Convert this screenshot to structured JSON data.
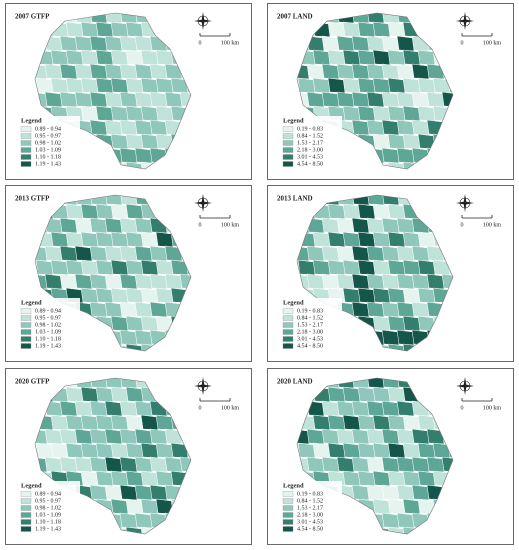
{
  "legend_colors": [
    "#e6f4f0",
    "#bfe2d9",
    "#8fc8bb",
    "#5ea797",
    "#347e6e",
    "#14564a"
  ],
  "panels": [
    {
      "title": "2007 GTFP",
      "legend": {
        "title": "Legend",
        "items": [
          "0.89 - 0.94",
          "0.95 - 0.97",
          "0.98 - 1.02",
          "1.03 - 1.09",
          "1.10 - 1.18",
          "1.19 - 1.43"
        ]
      },
      "scale": {
        "start": "0",
        "end": "100 km"
      }
    },
    {
      "title": "2007 LAND",
      "legend": {
        "title": "Legend",
        "items": [
          "0.19 - 0.83",
          "0.84 - 1.52",
          "1.53 - 2.17",
          "2.18 - 3.00",
          "3.01 - 4.53",
          "4.54 - 8.50"
        ]
      },
      "scale": {
        "start": "0",
        "end": "100 km"
      }
    },
    {
      "title": "2013 GTFP",
      "legend": {
        "title": "Legend",
        "items": [
          "0.89 - 0.94",
          "0.95 - 0.97",
          "0.98 - 1.02",
          "1.03 - 1.09",
          "1.10 - 1.18",
          "1.19 - 1.43"
        ]
      },
      "scale": {
        "start": "0",
        "end": "100 km"
      }
    },
    {
      "title": "2013 LAND",
      "legend": {
        "title": "Legend",
        "items": [
          "0.19 - 0.83",
          "0.84 - 1.52",
          "1.53 - 2.17",
          "2.18 - 3.00",
          "3.01 - 4.53",
          "4.54 - 8.50"
        ]
      },
      "scale": {
        "start": "0",
        "end": "100 km"
      }
    },
    {
      "title": "2020 GTFP",
      "legend": {
        "title": "Legend",
        "items": [
          "0.89 - 0.94",
          "0.95 - 0.97",
          "0.98 - 1.02",
          "1.03 - 1.09",
          "1.10 - 1.18",
          "1.19 - 1.43"
        ]
      },
      "scale": {
        "start": "0",
        "end": "100 km"
      }
    },
    {
      "title": "2020 LAND",
      "legend": {
        "title": "Legend",
        "items": [
          "0.19 - 0.83",
          "0.84 - 1.52",
          "1.53 - 2.17",
          "2.18 - 3.00",
          "3.01 - 4.53",
          "4.54 - 8.50"
        ]
      },
      "scale": {
        "start": "0",
        "end": "100 km"
      }
    }
  ]
}
